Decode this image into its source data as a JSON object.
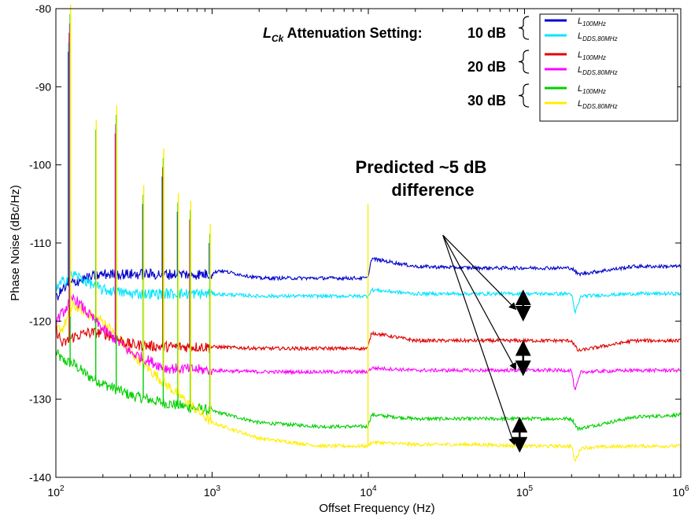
{
  "chart_data": {
    "type": "line",
    "x_scale": "log",
    "xlabel": "Offset Frequency (Hz)",
    "ylabel": "Phase Noise (dBc/Hz)",
    "xlim": [
      100,
      1000000
    ],
    "ylim": [
      -140,
      -80
    ],
    "x_ticks": [
      {
        "base": "10",
        "exp": "2"
      },
      {
        "base": "10",
        "exp": "3"
      },
      {
        "base": "10",
        "exp": "4"
      },
      {
        "base": "10",
        "exp": "5"
      },
      {
        "base": "10",
        "exp": "6"
      }
    ],
    "y_ticks": [
      "-80",
      "-90",
      "-100",
      "-110",
      "-120",
      "-130",
      "-140"
    ],
    "grid": false,
    "legend": {
      "placement": "top-right",
      "header_L": "L",
      "header_sub": "Ck",
      "header_rest": " Attenuation Setting:",
      "groups": [
        "10 dB",
        "20 dB",
        "30 dB"
      ]
    },
    "annotation": {
      "line1": "Predicted ~5 dB",
      "line2": "difference"
    },
    "series": [
      {
        "name_base": "L",
        "name_sub": "100MHz",
        "color": "#0000CC",
        "x": [
          100,
          110,
          130,
          160,
          200,
          300,
          500,
          1000,
          1100,
          2000,
          5000,
          9900,
          10500,
          20000,
          50000,
          100000,
          200000,
          220000,
          500000,
          1000000
        ],
        "y": [
          -117,
          -116,
          -115,
          -114.5,
          -114,
          -114,
          -114,
          -114,
          -113.5,
          -114.5,
          -114.5,
          -114.5,
          -112,
          -113,
          -113.2,
          -113.2,
          -113.2,
          -114,
          -113,
          -113
        ]
      },
      {
        "name_base": "L",
        "name_sub": "DDS,80MHz",
        "color": "#00E5FF",
        "x": [
          100,
          110,
          130,
          160,
          200,
          300,
          500,
          1000,
          2000,
          5000,
          9900,
          10500,
          20000,
          50000,
          100000,
          200000,
          210000,
          230000,
          500000,
          1000000
        ],
        "y": [
          -116,
          -115,
          -114,
          -115,
          -116,
          -116.5,
          -116.5,
          -116.5,
          -116.8,
          -116.8,
          -116.8,
          -116,
          -116.5,
          -116.5,
          -116.5,
          -116.5,
          -119,
          -116.8,
          -116.5,
          -116.5
        ]
      },
      {
        "name_base": "L",
        "name_sub": "100MHz",
        "color": "#E00000",
        "x": [
          100,
          110,
          130,
          160,
          200,
          300,
          500,
          1000,
          2000,
          5000,
          9900,
          10500,
          20000,
          50000,
          100000,
          200000,
          220000,
          500000,
          1000000
        ],
        "y": [
          -121,
          -123,
          -122,
          -121.5,
          -121.5,
          -123,
          -123.3,
          -123.3,
          -123.5,
          -123.5,
          -123.5,
          -121.5,
          -122.5,
          -122.5,
          -122.5,
          -122.5,
          -123.8,
          -122.5,
          -122.5
        ]
      },
      {
        "name_base": "L",
        "name_sub": "DDS,80MHz",
        "color": "#FF00FF",
        "x": [
          100,
          110,
          130,
          160,
          200,
          300,
          500,
          1000,
          2000,
          5000,
          9900,
          10500,
          20000,
          50000,
          100000,
          200000,
          210000,
          230000,
          500000,
          1000000
        ],
        "y": [
          -120,
          -119,
          -117,
          -119,
          -121,
          -124,
          -126,
          -126.3,
          -126.5,
          -126.5,
          -126.5,
          -126,
          -126.3,
          -126.3,
          -126.3,
          -126.3,
          -129,
          -126.5,
          -126.3,
          -126.3
        ]
      },
      {
        "name_base": "L",
        "name_sub": "100MHz",
        "color": "#00D000",
        "x": [
          100,
          110,
          130,
          160,
          200,
          300,
          500,
          1000,
          2000,
          5000,
          9900,
          10500,
          20000,
          50000,
          100000,
          200000,
          220000,
          500000,
          1000000
        ],
        "y": [
          -124,
          -125,
          -125.5,
          -127,
          -128,
          -129.5,
          -130.5,
          -131.5,
          -133,
          -133.5,
          -133.5,
          -132,
          -132.5,
          -132.5,
          -132.5,
          -132.5,
          -133.8,
          -132.3,
          -132
        ]
      },
      {
        "name_base": "L",
        "name_sub": "DDS,80MHz",
        "color": "#FFEE00",
        "x": [
          100,
          110,
          130,
          160,
          200,
          300,
          500,
          1000,
          2000,
          5000,
          9900,
          10500,
          20000,
          50000,
          100000,
          200000,
          210000,
          230000,
          500000,
          1000000
        ],
        "y": [
          -121,
          -121,
          -118,
          -119,
          -120,
          -124,
          -128,
          -133,
          -135,
          -136,
          -136,
          -135.5,
          -135.8,
          -135.8,
          -136,
          -136,
          -138,
          -136.2,
          -136,
          -136
        ]
      }
    ],
    "spurs": [
      {
        "x": 120,
        "top": -85.5,
        "series": [
          0,
          1,
          2,
          3,
          4,
          5
        ]
      },
      {
        "x": 180,
        "top": -95.5,
        "series": [
          4,
          5
        ]
      },
      {
        "x": 240,
        "top": -96,
        "series": [
          2,
          3,
          4,
          5
        ]
      },
      {
        "x": 360,
        "top": -105,
        "series": [
          0,
          4,
          5
        ]
      },
      {
        "x": 480,
        "top": -101.5,
        "series": [
          0,
          2,
          4,
          5
        ]
      },
      {
        "x": 600,
        "top": -106,
        "series": [
          0,
          4,
          5
        ]
      },
      {
        "x": 720,
        "top": -107,
        "series": [
          2,
          4,
          5
        ]
      },
      {
        "x": 960,
        "top": -110,
        "series": [
          0,
          4,
          5
        ]
      },
      {
        "x": 9950,
        "top": -105,
        "series": [
          5
        ]
      }
    ]
  }
}
